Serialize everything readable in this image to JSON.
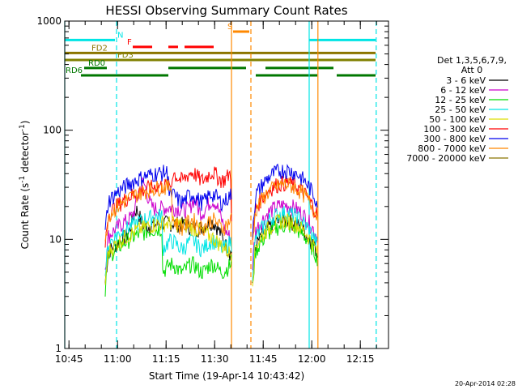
{
  "chart_data": {
    "type": "line",
    "title": "HESSI Observing Summary Count Rates",
    "xlabel": "Start Time (19-Apr-14 10:43:42)",
    "ylabel_main": "Count Rate (s",
    "ylabel_sup1": "-1",
    "ylabel_mid": " detector",
    "ylabel_sup2": "-1",
    "ylabel_end": ")",
    "ylim": [
      1,
      1000
    ],
    "yscale": "log",
    "y_ticks": [
      {
        "value": 1,
        "label": "1"
      },
      {
        "value": 10,
        "label": "10"
      },
      {
        "value": 100,
        "label": "100"
      },
      {
        "value": 1000,
        "label": "1000"
      }
    ],
    "xlim_minutes": [
      0,
      100
    ],
    "x_ticks": [
      {
        "minute": 1.3,
        "label": "10:45"
      },
      {
        "minute": 16.3,
        "label": "11:00"
      },
      {
        "minute": 31.3,
        "label": "11:15"
      },
      {
        "minute": 46.3,
        "label": "11:30"
      },
      {
        "minute": 61.3,
        "label": "11:45"
      },
      {
        "minute": 76.3,
        "label": "12:00"
      },
      {
        "minute": 91.3,
        "label": "12:15"
      }
    ],
    "legend_header": [
      "Det 1,3,5,6,7,9,",
      "Att 0"
    ],
    "series": [
      {
        "name": "3 - 6 keV",
        "color": "#000000",
        "start": 12.5,
        "k": 0.72,
        "peaks": [
          [
            22,
            1.55,
            1.5
          ],
          [
            46,
            1.4,
            3
          ]
        ]
      },
      {
        "name": "6 - 12 keV",
        "color": "#cc00cc",
        "start": 12.5,
        "k": 1.0,
        "peaks": [
          [
            24,
            1.85,
            1.8
          ],
          [
            46,
            1.6,
            2.5
          ],
          [
            40,
            1.3,
            1.2
          ]
        ]
      },
      {
        "name": "12 - 25 keV",
        "color": "#00dd00",
        "start": 12.5,
        "k": 0.65,
        "flatAfter": 30,
        "flatVal": 5.5
      },
      {
        "name": "25 - 50 keV",
        "color": "#00e5e5",
        "start": 12.5,
        "k": 0.85,
        "flatAfter": 30,
        "flatVal": 9
      },
      {
        "name": "50 - 100 keV",
        "color": "#dddd00",
        "start": 12.5,
        "k": 0.72
      },
      {
        "name": "100 - 300 keV",
        "color": "#ff0000",
        "start": 12.5,
        "k": 1.6,
        "flatAfter": 33,
        "flatVal": 38
      },
      {
        "name": "300 - 800 keV",
        "color": "#0000ee",
        "start": 12.5,
        "k": 2.1,
        "flatAfter": 32,
        "flatVal": 24
      },
      {
        "name": "800 - 7000 keV",
        "color": "#ff8800",
        "start": 12.5,
        "k": 1.55,
        "flatAfter": 33,
        "flatVal": 14
      },
      {
        "name": "7000 - 20000 keV",
        "color": "#8b7500",
        "start": 12.5,
        "k": 0.0
      }
    ],
    "flag_bars": [
      {
        "label": "N",
        "color": "#00e5e5",
        "segments": [
          [
            0,
            15.5
          ],
          [
            75.5,
            96
          ]
        ],
        "y": 670,
        "labelAt": 16
      },
      {
        "label": "F",
        "color": "#ff0000",
        "segments": [
          [
            21,
            27
          ],
          [
            32,
            35
          ],
          [
            37,
            46
          ]
        ],
        "y": 580,
        "labelAt": 19
      },
      {
        "label": "S",
        "color": "#ff8800",
        "segments": [
          [
            52,
            57
          ]
        ],
        "y": 800,
        "labelAt": 50
      },
      {
        "label": "FD2",
        "color": "#8b7500",
        "segments": [
          [
            0,
            96
          ]
        ],
        "y": 510,
        "labelAt": 8
      },
      {
        "label": "FD3",
        "color": "#808000",
        "segments": [
          [
            0,
            96
          ]
        ],
        "y": 440,
        "labelAt": 16
      },
      {
        "label": "RD0",
        "color": "#007700",
        "segments": [
          [
            6,
            13
          ],
          [
            32,
            56
          ],
          [
            62,
            83
          ]
        ],
        "y": 372,
        "labelAt": 7
      },
      {
        "label": "RD6",
        "color": "#007700",
        "segments": [
          [
            5,
            32
          ],
          [
            59,
            78
          ],
          [
            84,
            96
          ]
        ],
        "y": 318,
        "labelAt": 0
      }
    ],
    "vlines": [
      {
        "minute": 0,
        "color": "#00e5e5",
        "dash": false
      },
      {
        "minute": 16,
        "color": "#00e5e5",
        "dash": true
      },
      {
        "minute": 51.5,
        "color": "#ff8800",
        "dash": false
      },
      {
        "minute": 57.5,
        "color": "#ff8800",
        "dash": true
      },
      {
        "minute": 75.5,
        "color": "#00e5e5",
        "dash": false
      },
      {
        "minute": 78.2,
        "color": "#ff8800",
        "dash": false
      },
      {
        "minute": 96.2,
        "color": "#00e5e5",
        "dash": true
      }
    ],
    "gaps": [
      [
        51.5,
        58
      ]
    ]
  },
  "footer_timestamp": "20-Apr-2014 02:28"
}
